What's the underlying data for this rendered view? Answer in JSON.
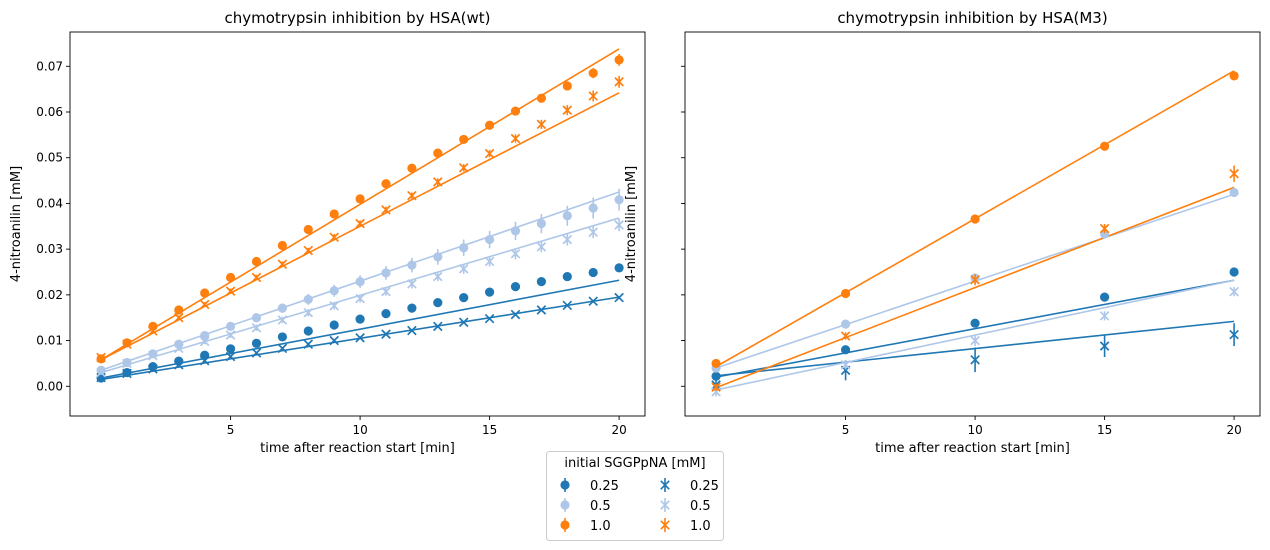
{
  "chart_data": [
    {
      "type": "scatter",
      "title": "chymotrypsin inhibition by HSA(wt)",
      "xlabel": "time after reaction start [min]",
      "ylabel": "4-nitroanilin [mM]",
      "xlim": [
        -1.2,
        21.0
      ],
      "ylim": [
        -0.0065,
        0.0775
      ],
      "xticks": [
        5,
        10,
        15,
        20
      ],
      "xtick_labels": [
        "5",
        "10",
        "15",
        "20"
      ],
      "yticks": [
        0.0,
        0.01,
        0.02,
        0.03,
        0.04,
        0.05,
        0.06,
        0.07
      ],
      "ytick_labels": [
        "0.00",
        "0.01",
        "0.02",
        "0.03",
        "0.04",
        "0.05",
        "0.06",
        "0.07"
      ],
      "grid": false,
      "series": [
        {
          "marker": "o",
          "color": "#1f77b4",
          "x": [
            0,
            1,
            2,
            3,
            4,
            5,
            6,
            7,
            8,
            9,
            10,
            11,
            12,
            13,
            14,
            15,
            16,
            17,
            18,
            19,
            20
          ],
          "y": [
            0.0018,
            0.003,
            0.0043,
            0.0055,
            0.0068,
            0.0082,
            0.0094,
            0.0108,
            0.0121,
            0.0134,
            0.0147,
            0.0159,
            0.0171,
            0.0183,
            0.0194,
            0.0206,
            0.0218,
            0.0229,
            0.024,
            0.0249,
            0.0259
          ],
          "err": [
            0.0003,
            0.0003,
            0.0003,
            0.0003,
            0.0003,
            0.0003,
            0.0003,
            0.0003,
            0.0003,
            0.0003,
            0.0003,
            0.0003,
            0.0003,
            0.0003,
            0.0003,
            0.0003,
            0.0003,
            0.0003,
            0.0003,
            0.0003,
            0.0003
          ],
          "fit": [
            0.0018,
            0.0232
          ]
        },
        {
          "marker": "o",
          "color": "#aec7e8",
          "x": [
            0,
            1,
            2,
            3,
            4,
            5,
            6,
            7,
            8,
            9,
            10,
            11,
            12,
            13,
            14,
            15,
            16,
            17,
            18,
            19,
            20
          ],
          "y": [
            0.0035,
            0.0052,
            0.0071,
            0.0092,
            0.0111,
            0.0131,
            0.015,
            0.0171,
            0.019,
            0.0209,
            0.0229,
            0.0248,
            0.0265,
            0.0283,
            0.0303,
            0.0321,
            0.034,
            0.0356,
            0.0373,
            0.039,
            0.0408
          ],
          "err": [
            0.0004,
            0.0004,
            0.0005,
            0.0006,
            0.0007,
            0.0008,
            0.0009,
            0.001,
            0.0012,
            0.0013,
            0.0014,
            0.0015,
            0.0016,
            0.0017,
            0.0018,
            0.0019,
            0.002,
            0.0021,
            0.0022,
            0.0023,
            0.0024
          ],
          "fit": [
            0.0035,
            0.0425
          ]
        },
        {
          "marker": "o",
          "color": "#ff7f0e",
          "x": [
            0,
            1,
            2,
            3,
            4,
            5,
            6,
            7,
            8,
            9,
            10,
            11,
            12,
            13,
            14,
            15,
            16,
            17,
            18,
            19,
            20
          ],
          "y": [
            0.006,
            0.0095,
            0.0131,
            0.0167,
            0.0204,
            0.0238,
            0.0273,
            0.0308,
            0.0343,
            0.0377,
            0.041,
            0.0443,
            0.0477,
            0.051,
            0.054,
            0.0571,
            0.0602,
            0.063,
            0.0657,
            0.0685,
            0.0714
          ],
          "err": [
            0.0004,
            0.0005,
            0.0005,
            0.0005,
            0.0005,
            0.0006,
            0.0006,
            0.0006,
            0.0006,
            0.0007,
            0.0007,
            0.0007,
            0.0007,
            0.0008,
            0.0008,
            0.0008,
            0.0009,
            0.0009,
            0.001,
            0.0011,
            0.0013
          ],
          "fit": [
            0.0058,
            0.0738
          ]
        },
        {
          "marker": "x",
          "color": "#1f77b4",
          "x": [
            0,
            1,
            2,
            3,
            4,
            5,
            6,
            7,
            8,
            9,
            10,
            11,
            12,
            13,
            14,
            15,
            16,
            17,
            18,
            19,
            20
          ],
          "y": [
            0.0019,
            0.0028,
            0.0038,
            0.0047,
            0.0056,
            0.0065,
            0.0073,
            0.0083,
            0.0092,
            0.01,
            0.0106,
            0.0114,
            0.0122,
            0.0131,
            0.014,
            0.0148,
            0.0157,
            0.0167,
            0.0177,
            0.0186,
            0.0194
          ],
          "err": [
            0.0003,
            0.0003,
            0.0003,
            0.0003,
            0.0003,
            0.0003,
            0.0003,
            0.0003,
            0.0003,
            0.0003,
            0.0003,
            0.0003,
            0.0003,
            0.0003,
            0.0003,
            0.0003,
            0.0003,
            0.0003,
            0.0003,
            0.0003,
            0.0003
          ],
          "fit": [
            0.0015,
            0.0195
          ]
        },
        {
          "marker": "x",
          "color": "#aec7e8",
          "x": [
            0,
            1,
            2,
            3,
            4,
            5,
            6,
            7,
            8,
            9,
            10,
            11,
            12,
            13,
            14,
            15,
            16,
            17,
            18,
            19,
            20
          ],
          "y": [
            0.003,
            0.005,
            0.0067,
            0.0083,
            0.0098,
            0.0112,
            0.0128,
            0.0145,
            0.0161,
            0.0176,
            0.0192,
            0.0207,
            0.0224,
            0.024,
            0.0257,
            0.0273,
            0.029,
            0.0305,
            0.0321,
            0.0337,
            0.0353
          ],
          "err": [
            0.0004,
            0.0004,
            0.0005,
            0.0005,
            0.0006,
            0.0006,
            0.0007,
            0.0007,
            0.0008,
            0.0008,
            0.0009,
            0.0009,
            0.001,
            0.001,
            0.0011,
            0.0011,
            0.0012,
            0.0012,
            0.0013,
            0.0013,
            0.0014
          ],
          "fit": [
            0.003,
            0.0368
          ]
        },
        {
          "marker": "x",
          "color": "#ff7f0e",
          "x": [
            0,
            1,
            2,
            3,
            4,
            5,
            6,
            7,
            8,
            9,
            10,
            11,
            12,
            13,
            14,
            15,
            16,
            17,
            18,
            19,
            20
          ],
          "y": [
            0.0063,
            0.0092,
            0.0121,
            0.015,
            0.0179,
            0.0208,
            0.0238,
            0.0267,
            0.0297,
            0.0326,
            0.0356,
            0.0386,
            0.0417,
            0.0447,
            0.0478,
            0.0509,
            0.0542,
            0.0573,
            0.0604,
            0.0635,
            0.0666
          ],
          "err": [
            0.0005,
            0.0005,
            0.0005,
            0.0005,
            0.0005,
            0.0006,
            0.0006,
            0.0006,
            0.0006,
            0.0007,
            0.0007,
            0.0007,
            0.0007,
            0.0008,
            0.0008,
            0.0008,
            0.0009,
            0.001,
            0.0011,
            0.0012,
            0.0013
          ],
          "fit": [
            0.0058,
            0.0642
          ]
        }
      ]
    },
    {
      "type": "scatter",
      "title": "chymotrypsin inhibition by HSA(M3)",
      "xlabel": "time after reaction start [min]",
      "ylabel": "4-nitroanilin [mM]",
      "xlim": [
        -1.2,
        21.0
      ],
      "ylim": [
        -0.0065,
        0.0775
      ],
      "xticks": [
        5,
        10,
        15,
        20
      ],
      "xtick_labels": [
        "5",
        "10",
        "15",
        "20"
      ],
      "yticks": [
        0.0,
        0.01,
        0.02,
        0.03,
        0.04,
        0.05,
        0.06,
        0.07
      ],
      "ytick_labels": [],
      "grid": false,
      "series": [
        {
          "marker": "o",
          "color": "#1f77b4",
          "x": [
            0,
            5,
            10,
            15,
            20
          ],
          "y": [
            0.0022,
            0.008,
            0.0138,
            0.0195,
            0.025
          ],
          "err": [
            0.0004,
            0.0005,
            0.0005,
            0.0005,
            0.0006
          ],
          "fit": [
            0.002,
            0.0232
          ]
        },
        {
          "marker": "o",
          "color": "#aec7e8",
          "x": [
            0,
            5,
            10,
            15,
            20
          ],
          "y": [
            0.004,
            0.0136,
            0.0237,
            0.0333,
            0.0424
          ],
          "err": [
            0.0004,
            0.0005,
            0.0005,
            0.0005,
            0.0006
          ],
          "fit": [
            0.004,
            0.042
          ]
        },
        {
          "marker": "o",
          "color": "#ff7f0e",
          "x": [
            0,
            5,
            10,
            15,
            20
          ],
          "y": [
            0.005,
            0.0203,
            0.0366,
            0.0525,
            0.0679
          ],
          "err": [
            0.0004,
            0.0005,
            0.0005,
            0.0005,
            0.0006
          ],
          "fit": [
            0.0043,
            0.069
          ]
        },
        {
          "marker": "x",
          "color": "#1f77b4",
          "x": [
            0,
            5,
            10,
            15,
            20
          ],
          "y": [
            0.0003,
            0.0035,
            0.0058,
            0.0088,
            0.0113
          ],
          "err": [
            0.0015,
            0.0022,
            0.0027,
            0.0024,
            0.0025
          ],
          "fit": [
            0.0023,
            0.0142
          ]
        },
        {
          "marker": "x",
          "color": "#aec7e8",
          "x": [
            0,
            5,
            10,
            15,
            20
          ],
          "y": [
            -0.0012,
            0.0047,
            0.01,
            0.0154,
            0.0207
          ],
          "err": [
            0.001,
            0.001,
            0.0012,
            0.001,
            0.001
          ],
          "fit": [
            -0.0008,
            0.0232
          ]
        },
        {
          "marker": "x",
          "color": "#ff7f0e",
          "x": [
            0,
            5,
            10,
            15,
            20
          ],
          "y": [
            -0.0002,
            0.011,
            0.0233,
            0.0345,
            0.0465
          ],
          "err": [
            0.0008,
            0.0008,
            0.0012,
            0.001,
            0.0018
          ],
          "fit": [
            -0.0003,
            0.0435
          ]
        }
      ]
    }
  ],
  "legend": {
    "title": "initial SGGPpNA  [mM]",
    "placement": "bottom-center",
    "columns": [
      [
        {
          "marker": "o",
          "color": "#1f77b4",
          "label": "0.25"
        },
        {
          "marker": "o",
          "color": "#aec7e8",
          "label": "0.5"
        },
        {
          "marker": "o",
          "color": "#ff7f0e",
          "label": "1.0"
        }
      ],
      [
        {
          "marker": "x",
          "color": "#1f77b4",
          "label": "0.25"
        },
        {
          "marker": "x",
          "color": "#aec7e8",
          "label": "0.5"
        },
        {
          "marker": "x",
          "color": "#ff7f0e",
          "label": "1.0"
        }
      ]
    ]
  }
}
